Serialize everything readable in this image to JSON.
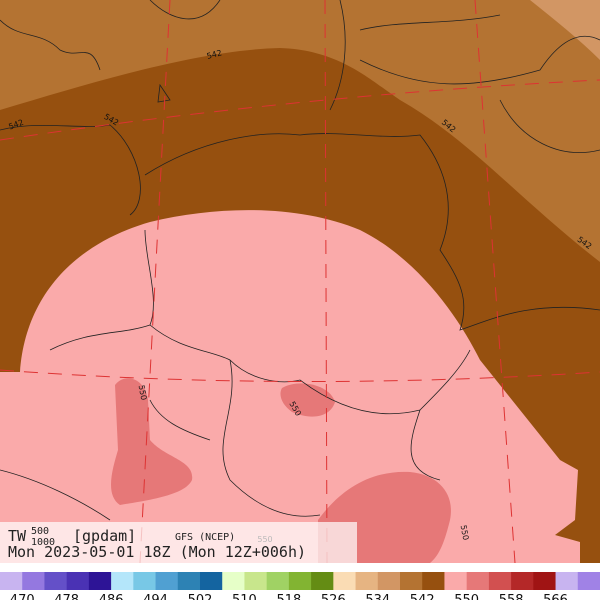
{
  "header": {
    "variable": "TW",
    "superscript": "500",
    "subscript": "1000",
    "units": "[gpdam]",
    "model": "GFS (NCEP)",
    "valid": "Mon 2023-05-01 18Z (Mon 12Z+006h)"
  },
  "contour_labels": [
    "542",
    "542",
    "542",
    "542",
    "542",
    "550",
    "550",
    "550",
    "550"
  ],
  "colorbar": {
    "labels": [
      470,
      478,
      486,
      494,
      502,
      510,
      518,
      526,
      534,
      542,
      550,
      558,
      566
    ],
    "colors": [
      "#c8b4f0",
      "#9478e0",
      "#6450c8",
      "#4a32b4",
      "#2d1496",
      "#b4e6fa",
      "#78c8e6",
      "#50a0d2",
      "#2d82b4",
      "#1464a0",
      "#e6ffc8",
      "#c8e68c",
      "#a0d264",
      "#82b432",
      "#648c14",
      "#fadcb4",
      "#e6b482",
      "#d29664",
      "#b47332",
      "#96500f",
      "#faaaaa",
      "#e67878",
      "#d25050",
      "#b42828",
      "#a01414",
      "#c8b4f0",
      "#a082e6"
    ]
  }
}
